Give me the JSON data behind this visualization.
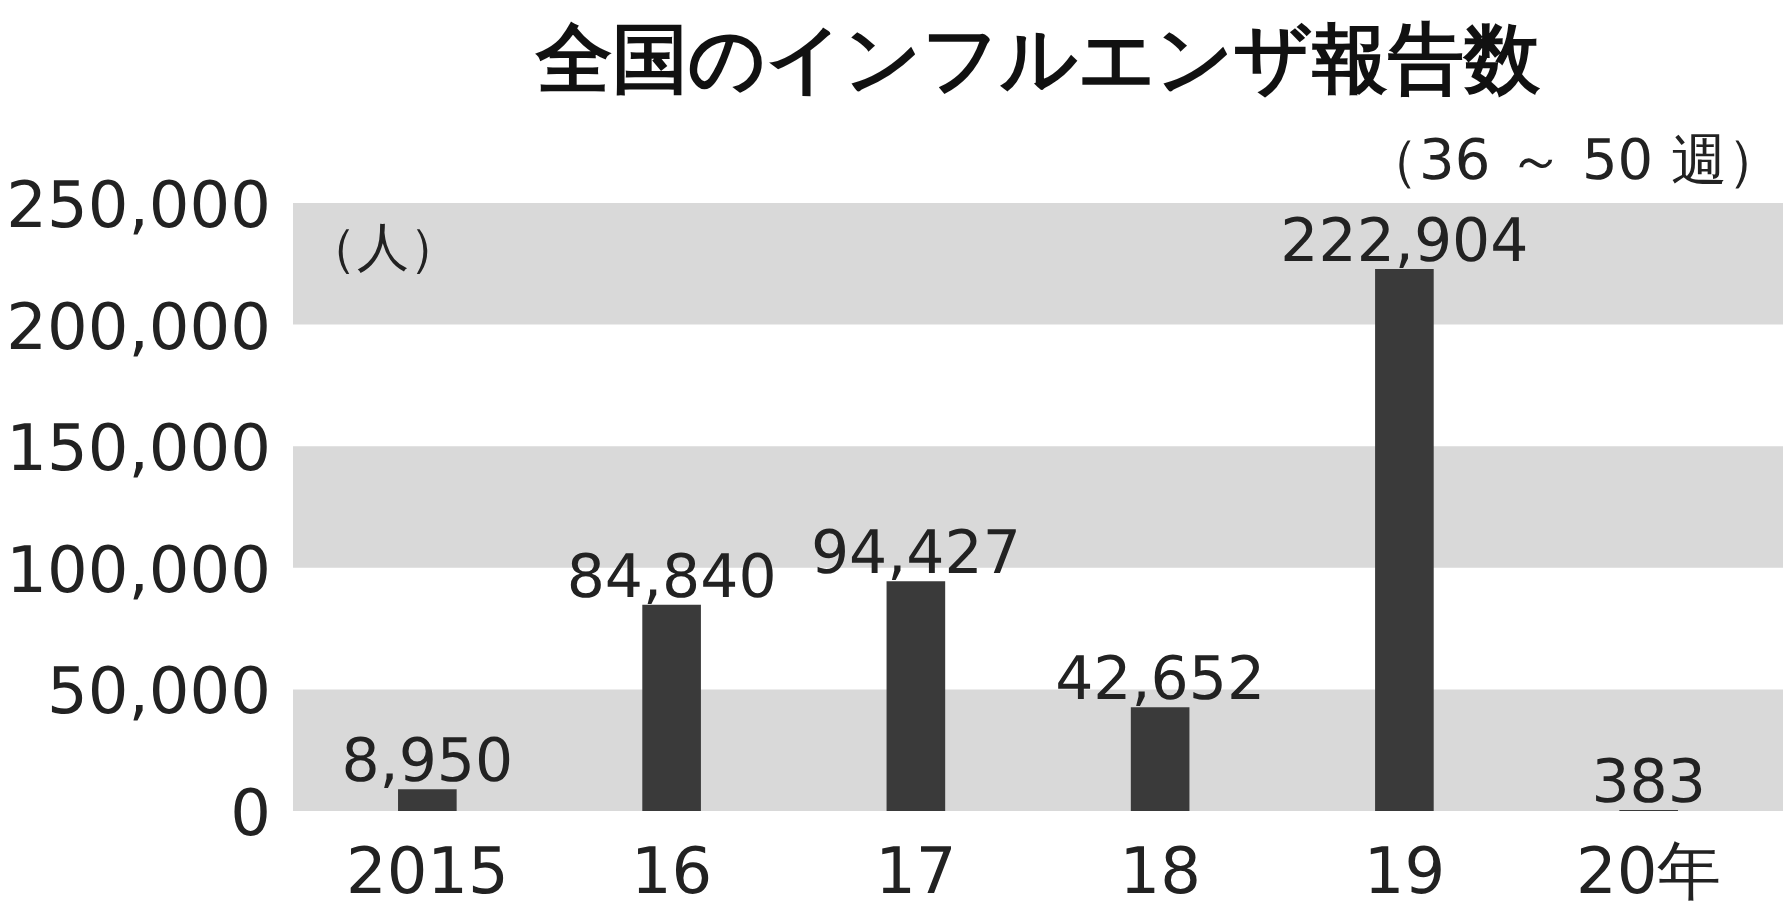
{
  "chart_data": {
    "type": "bar",
    "title": "全国のインフルエンザ報告数",
    "subtitle": "（36 ～ 50 週）",
    "ylabel": "（人）",
    "categories": [
      "2015",
      "16",
      "17",
      "18",
      "19",
      "20年"
    ],
    "values": [
      8950,
      84840,
      94427,
      42652,
      222904,
      383
    ],
    "color": "#3a3a3a",
    "value_labels": [
      "8,950",
      "84,840",
      "94,427",
      "42,652",
      "222,904",
      "383"
    ],
    "ylim": [
      0,
      250000
    ],
    "yticks": [
      {
        "value": 0,
        "label": "0"
      },
      {
        "value": 50000,
        "label": "50,000"
      },
      {
        "value": 100000,
        "label": "100,000"
      },
      {
        "value": 150000,
        "label": "150,000"
      },
      {
        "value": 200000,
        "label": "200,000"
      },
      {
        "value": 250000,
        "label": "250,000"
      }
    ],
    "bands": [
      {
        "axis": "y",
        "from": 0,
        "to": 50000,
        "color": "#d9d9d9"
      },
      {
        "axis": "y",
        "from": 100000,
        "to": 150000,
        "color": "#d9d9d9"
      },
      {
        "axis": "y",
        "from": 200000,
        "to": 250000,
        "color": "#d9d9d9"
      }
    ],
    "grid": false
  }
}
